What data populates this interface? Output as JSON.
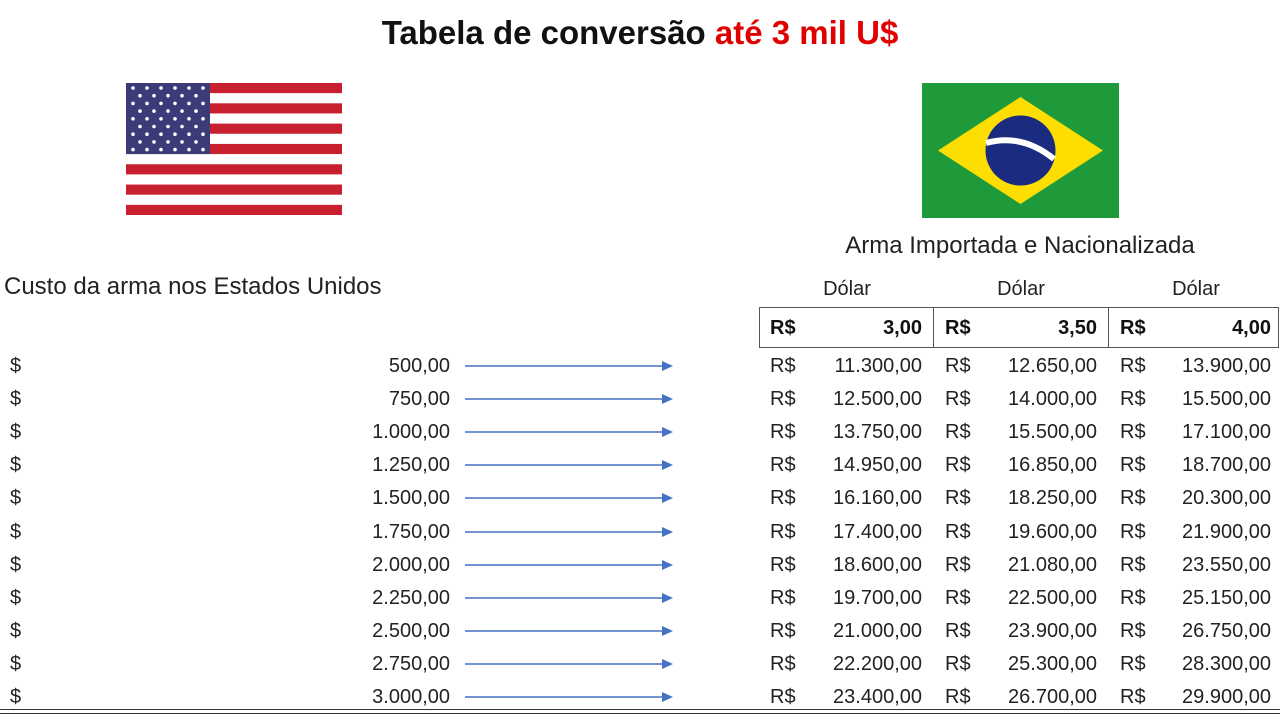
{
  "title": {
    "prefix": "Tabela de conversão",
    "highlight": "até 3 mil U$",
    "highlight_color": "#e00000"
  },
  "flags": {
    "left": "usa-flag",
    "right": "brazil-flag"
  },
  "left_section": {
    "heading": "Custo da arma nos Estados Unidos",
    "currency": "$"
  },
  "right_section": {
    "heading": "Arma Importada e Nacionalizada",
    "currency": "R$",
    "columns": [
      {
        "label": "Dólar",
        "rate": "3,00"
      },
      {
        "label": "Dólar",
        "rate": "3,50"
      },
      {
        "label": "Dólar",
        "rate": "4,00"
      }
    ]
  },
  "arrow_color": "#4472c4",
  "rows": [
    {
      "usd": "500,00",
      "brl": [
        "11.300,00",
        "12.650,00",
        "13.900,00"
      ]
    },
    {
      "usd": "750,00",
      "brl": [
        "12.500,00",
        "14.000,00",
        "15.500,00"
      ]
    },
    {
      "usd": "1.000,00",
      "brl": [
        "13.750,00",
        "15.500,00",
        "17.100,00"
      ]
    },
    {
      "usd": "1.250,00",
      "brl": [
        "14.950,00",
        "16.850,00",
        "18.700,00"
      ]
    },
    {
      "usd": "1.500,00",
      "brl": [
        "16.160,00",
        "18.250,00",
        "20.300,00"
      ]
    },
    {
      "usd": "1.750,00",
      "brl": [
        "17.400,00",
        "19.600,00",
        "21.900,00"
      ]
    },
    {
      "usd": "2.000,00",
      "brl": [
        "18.600,00",
        "21.080,00",
        "23.550,00"
      ]
    },
    {
      "usd": "2.250,00",
      "brl": [
        "19.700,00",
        "22.500,00",
        "25.150,00"
      ]
    },
    {
      "usd": "2.500,00",
      "brl": [
        "21.000,00",
        "23.900,00",
        "26.750,00"
      ]
    },
    {
      "usd": "2.750,00",
      "brl": [
        "22.200,00",
        "25.300,00",
        "28.300,00"
      ]
    },
    {
      "usd": "3.000,00",
      "brl": [
        "23.400,00",
        "26.700,00",
        "29.900,00"
      ]
    }
  ]
}
